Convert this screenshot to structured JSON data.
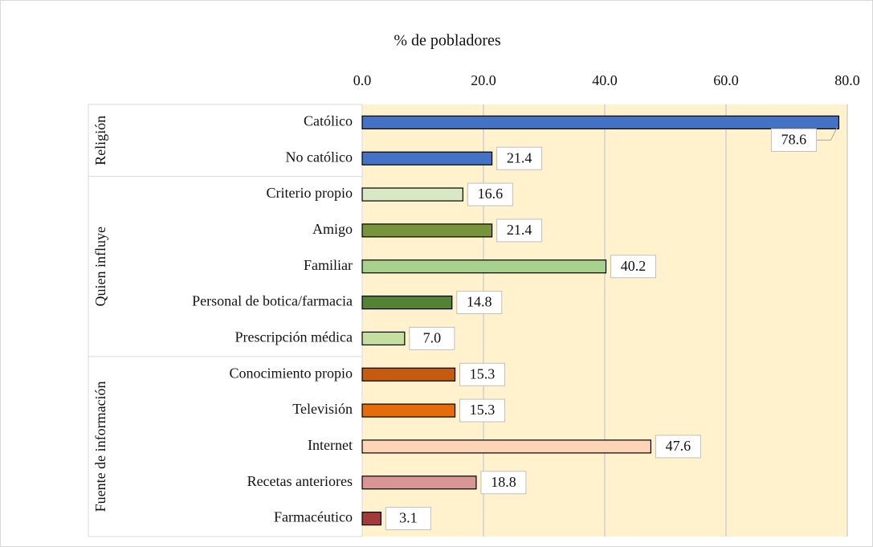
{
  "chart_data": {
    "type": "bar",
    "orientation": "horizontal",
    "title": "% de pobladores",
    "xlim": [
      0,
      80
    ],
    "xticks": [
      {
        "value": 0,
        "label": "0.0"
      },
      {
        "value": 20,
        "label": "20.0"
      },
      {
        "value": 40,
        "label": "40.0"
      },
      {
        "value": 60,
        "label": "60.0"
      },
      {
        "value": 80,
        "label": "80.0"
      }
    ],
    "grid": true,
    "plot_background": "#fff2cc",
    "groups": [
      {
        "name": "Religión",
        "categories": [
          "Católico",
          "No católico"
        ],
        "values": [
          78.6,
          21.4
        ],
        "value_labels": [
          "78.6",
          "21.4"
        ],
        "colors": [
          "#4472c4",
          "#4472c4"
        ]
      },
      {
        "name": "Quien influye",
        "categories": [
          "Criterio propio",
          "Amigo",
          "Familiar",
          "Personal de botica/farmacia",
          "Prescripción médica"
        ],
        "values": [
          16.6,
          21.4,
          40.2,
          14.8,
          7.0
        ],
        "value_labels": [
          "16.6",
          "21.4",
          "40.2",
          "14.8",
          "7.0"
        ],
        "colors": [
          "#d8e7c4",
          "#77933c",
          "#a9d18e",
          "#548235",
          "#c5dfa0"
        ]
      },
      {
        "name": "Fuente de información",
        "categories": [
          "Conocimiento propio",
          "Televisión",
          "Internet",
          "Recetas anteriores",
          "Farmacéutico"
        ],
        "values": [
          15.3,
          15.3,
          47.6,
          18.8,
          3.1
        ],
        "value_labels": [
          "15.3",
          "15.3",
          "47.6",
          "18.8",
          "3.1"
        ],
        "colors": [
          "#c55a11",
          "#e46c0a",
          "#fbd5b5",
          "#d99594",
          "#a33a3a"
        ]
      }
    ]
  }
}
